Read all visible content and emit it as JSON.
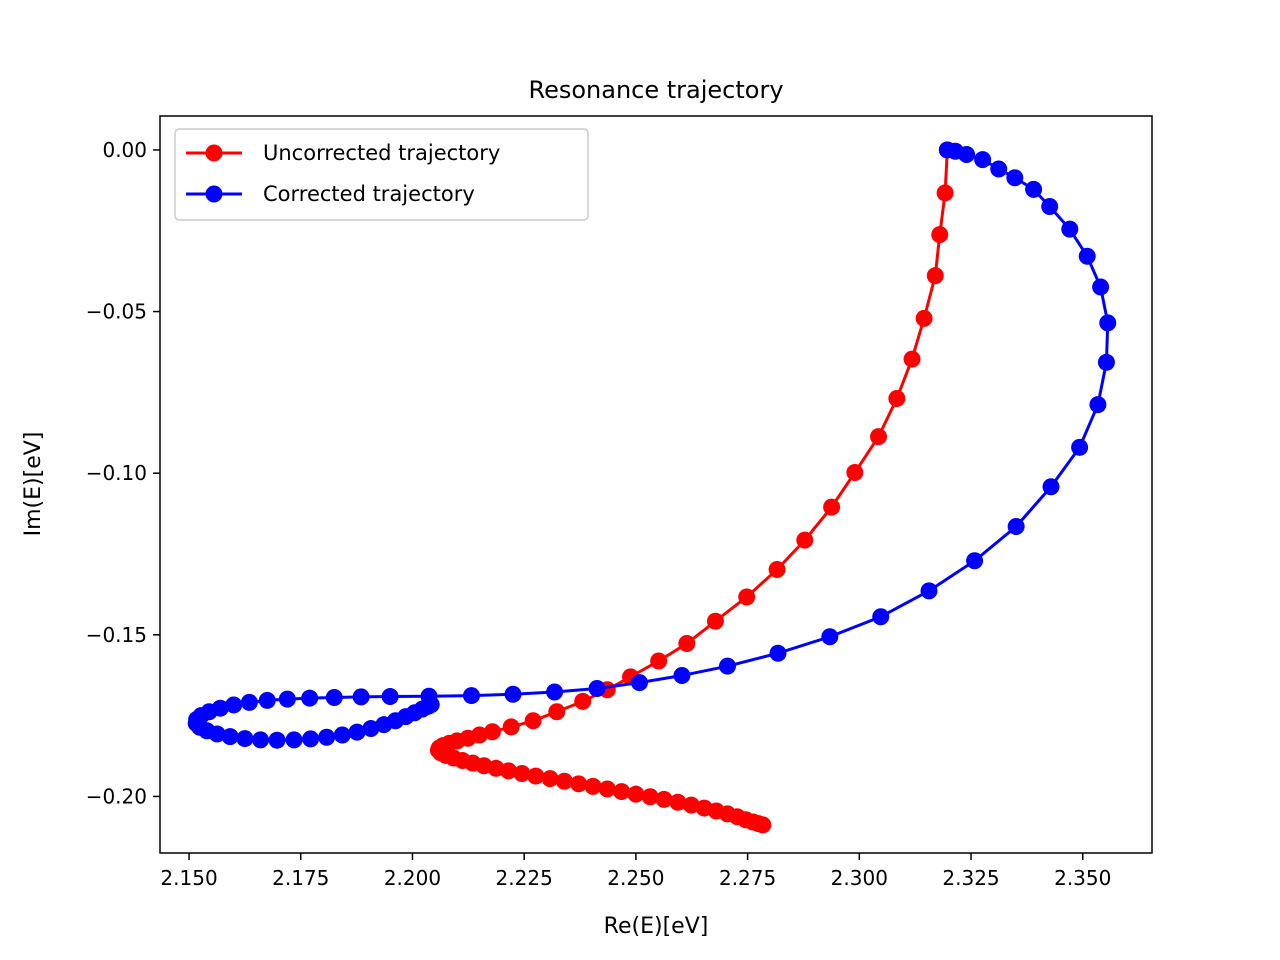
{
  "chart_data": {
    "type": "line",
    "title": "Resonance trajectory",
    "xlabel": "Re(E)[eV]",
    "ylabel": "Im(E)[eV]",
    "xlim": [
      2.1435,
      2.3655
    ],
    "ylim": [
      -0.2175,
      0.0105
    ],
    "xticks": [
      2.15,
      2.175,
      2.2,
      2.225,
      2.25,
      2.275,
      2.3,
      2.325,
      2.35
    ],
    "xtick_labels": [
      "2.150",
      "2.175",
      "2.200",
      "2.225",
      "2.250",
      "2.275",
      "2.300",
      "2.325",
      "2.350"
    ],
    "yticks": [
      0.0,
      -0.05,
      -0.1,
      -0.15,
      -0.2
    ],
    "ytick_labels": [
      "0.00",
      "−0.05",
      "−0.10",
      "−0.15",
      "−0.20"
    ],
    "grid": false,
    "legend_position": "upper-left",
    "series": [
      {
        "name": "Uncorrected trajectory",
        "color": "#ff0000",
        "marker": "circle",
        "points": [
          [
            2.3197,
            0.0
          ],
          [
            2.3192,
            -0.0133
          ],
          [
            2.318,
            -0.0262
          ],
          [
            2.317,
            -0.0389
          ],
          [
            2.3145,
            -0.0521
          ],
          [
            2.3118,
            -0.0647
          ],
          [
            2.3084,
            -0.0769
          ],
          [
            2.3043,
            -0.0887
          ],
          [
            2.299,
            -0.0998
          ],
          [
            2.2938,
            -0.1105
          ],
          [
            2.2878,
            -0.1207
          ],
          [
            2.2816,
            -0.1298
          ],
          [
            2.2748,
            -0.1383
          ],
          [
            2.2678,
            -0.1458
          ],
          [
            2.2614,
            -0.1527
          ],
          [
            2.2551,
            -0.1581
          ],
          [
            2.2488,
            -0.163
          ],
          [
            2.2436,
            -0.167
          ],
          [
            2.2381,
            -0.1706
          ],
          [
            2.2323,
            -0.1738
          ],
          [
            2.227,
            -0.1766
          ],
          [
            2.2221,
            -0.1785
          ],
          [
            2.2179,
            -0.18
          ],
          [
            2.215,
            -0.181
          ],
          [
            2.2124,
            -0.182
          ],
          [
            2.21,
            -0.1828
          ],
          [
            2.2082,
            -0.1836
          ],
          [
            2.2068,
            -0.1843
          ],
          [
            2.206,
            -0.185
          ],
          [
            2.2058,
            -0.1857
          ],
          [
            2.2063,
            -0.1865
          ],
          [
            2.2075,
            -0.1873
          ],
          [
            2.2092,
            -0.1881
          ],
          [
            2.2112,
            -0.1889
          ],
          [
            2.2135,
            -0.1897
          ],
          [
            2.216,
            -0.1905
          ],
          [
            2.2187,
            -0.1913
          ],
          [
            2.2215,
            -0.1921
          ],
          [
            2.2245,
            -0.1929
          ],
          [
            2.2276,
            -0.1937
          ],
          [
            2.2308,
            -0.1945
          ],
          [
            2.234,
            -0.1953
          ],
          [
            2.2372,
            -0.1961
          ],
          [
            2.2404,
            -0.1969
          ],
          [
            2.2436,
            -0.1977
          ],
          [
            2.2468,
            -0.1985
          ],
          [
            2.25,
            -0.1993
          ],
          [
            2.2532,
            -0.2001
          ],
          [
            2.2563,
            -0.2009
          ],
          [
            2.2594,
            -0.2018
          ],
          [
            2.2624,
            -0.2027
          ],
          [
            2.2653,
            -0.2036
          ],
          [
            2.268,
            -0.2045
          ],
          [
            2.2705,
            -0.2054
          ],
          [
            2.2727,
            -0.2063
          ],
          [
            2.2746,
            -0.2072
          ],
          [
            2.2762,
            -0.2079
          ],
          [
            2.2774,
            -0.2084
          ],
          [
            2.2784,
            -0.2088
          ]
        ]
      },
      {
        "name": "Corrected trajectory",
        "color": "#0000ff",
        "marker": "circle",
        "points": [
          [
            2.3197,
            0.0
          ],
          [
            2.3215,
            -0.0004
          ],
          [
            2.324,
            -0.0014
          ],
          [
            2.3276,
            -0.003
          ],
          [
            2.3312,
            -0.0059
          ],
          [
            2.3348,
            -0.0086
          ],
          [
            2.339,
            -0.0122
          ],
          [
            2.3426,
            -0.0175
          ],
          [
            2.3471,
            -0.0245
          ],
          [
            2.351,
            -0.0329
          ],
          [
            2.354,
            -0.0424
          ],
          [
            2.3556,
            -0.0535
          ],
          [
            2.3553,
            -0.0657
          ],
          [
            2.3534,
            -0.0788
          ],
          [
            2.3493,
            -0.092
          ],
          [
            2.3429,
            -0.1042
          ],
          [
            2.3351,
            -0.1165
          ],
          [
            2.3258,
            -0.1271
          ],
          [
            2.3156,
            -0.1364
          ],
          [
            2.3048,
            -0.1444
          ],
          [
            2.2934,
            -0.1506
          ],
          [
            2.2818,
            -0.1557
          ],
          [
            2.2705,
            -0.1597
          ],
          [
            2.2603,
            -0.1626
          ],
          [
            2.2508,
            -0.1648
          ],
          [
            2.2413,
            -0.1666
          ],
          [
            2.2318,
            -0.1677
          ],
          [
            2.2225,
            -0.1684
          ],
          [
            2.2132,
            -0.1688
          ],
          [
            2.2037,
            -0.169
          ],
          [
            2.195,
            -0.1691
          ],
          [
            2.1885,
            -0.1692
          ],
          [
            2.1825,
            -0.1694
          ],
          [
            2.177,
            -0.1696
          ],
          [
            2.172,
            -0.1699
          ],
          [
            2.1675,
            -0.1703
          ],
          [
            2.1635,
            -0.1709
          ],
          [
            2.16,
            -0.1717
          ],
          [
            2.157,
            -0.1727
          ],
          [
            2.1545,
            -0.1738
          ],
          [
            2.1527,
            -0.175
          ],
          [
            2.1517,
            -0.1762
          ],
          [
            2.1516,
            -0.1774
          ],
          [
            2.1524,
            -0.1786
          ],
          [
            2.154,
            -0.1797
          ],
          [
            2.1563,
            -0.1807
          ],
          [
            2.1592,
            -0.1815
          ],
          [
            2.1625,
            -0.1821
          ],
          [
            2.166,
            -0.1825
          ],
          [
            2.1697,
            -0.1826
          ],
          [
            2.1735,
            -0.1825
          ],
          [
            2.1772,
            -0.1822
          ],
          [
            2.1808,
            -0.1817
          ],
          [
            2.1843,
            -0.181
          ],
          [
            2.1876,
            -0.1801
          ],
          [
            2.1907,
            -0.179
          ],
          [
            2.1936,
            -0.1778
          ],
          [
            2.1962,
            -0.1766
          ],
          [
            2.1985,
            -0.1753
          ],
          [
            2.2005,
            -0.1741
          ],
          [
            2.2022,
            -0.173
          ],
          [
            2.2035,
            -0.1721
          ],
          [
            2.2042,
            -0.1716
          ]
        ]
      }
    ]
  }
}
